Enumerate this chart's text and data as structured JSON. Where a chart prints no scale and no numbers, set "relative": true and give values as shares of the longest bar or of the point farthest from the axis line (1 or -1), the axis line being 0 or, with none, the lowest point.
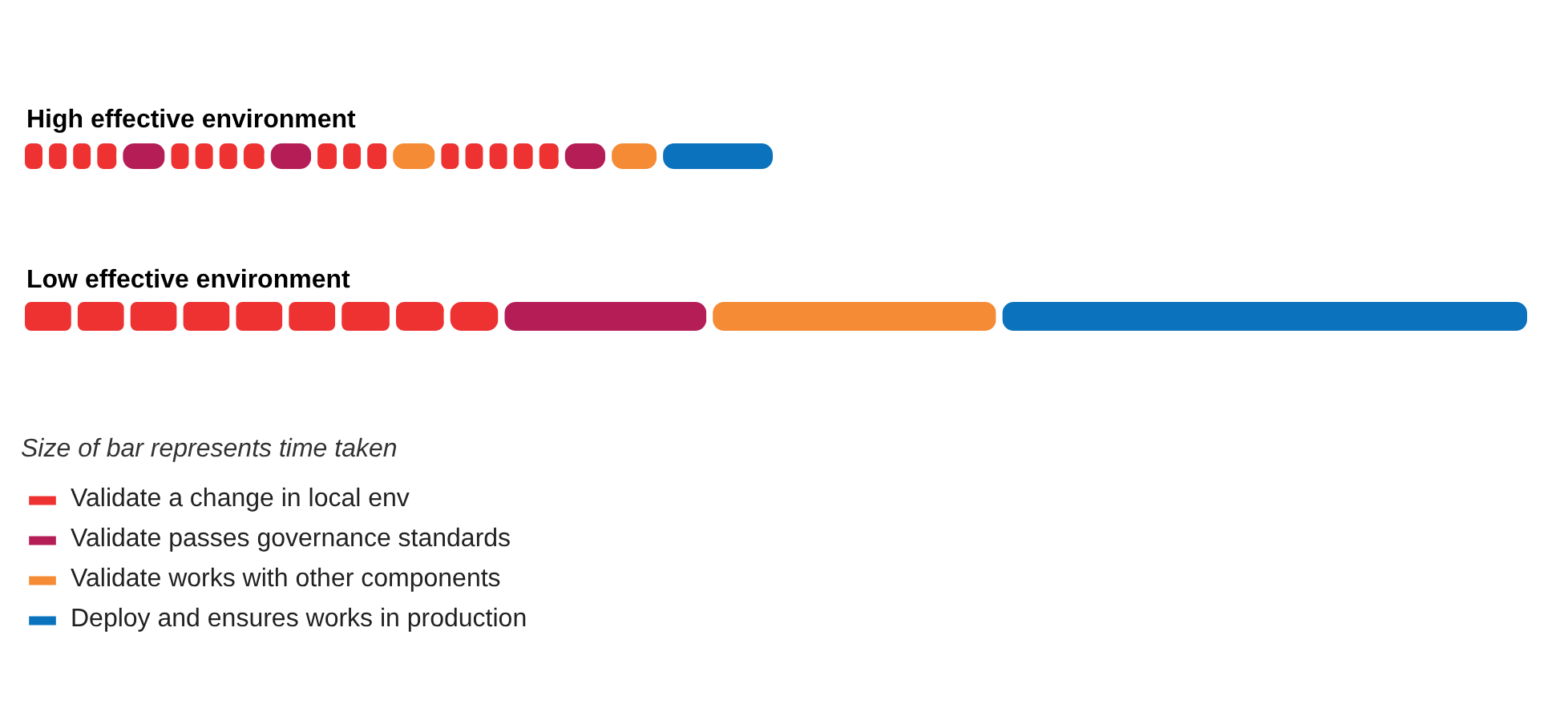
{
  "chart_data": {
    "type": "bar",
    "orientation": "horizontal",
    "stacked": true,
    "relative": true,
    "legend_title": "Size of bar represents time taken",
    "legend": "bottom left",
    "categories": [
      "High effective environment",
      "Low effective environment"
    ],
    "series": [
      {
        "name": "Validate a change in local env",
        "color": "#ee3131",
        "values": [
          0.016,
          0.035
        ]
      },
      {
        "color": "#ee3131",
        "values": [
          0.016,
          0.035
        ]
      },
      {
        "color": "#ee3131",
        "values": [
          0.016,
          0.035
        ]
      },
      {
        "color": "#ee3131",
        "values": [
          0.017,
          0.035
        ]
      },
      {
        "color": "#b51d57",
        "values": [
          0.032,
          null
        ]
      },
      {
        "color": "#ee3131",
        "values": [
          0.016,
          0.035
        ]
      },
      {
        "color": "#ee3131",
        "values": [
          0.016,
          0.035
        ]
      },
      {
        "color": "#ee3131",
        "values": [
          0.016,
          0.036
        ]
      },
      {
        "color": "#ee3131",
        "values": [
          0.018,
          0.036
        ]
      },
      {
        "color": "#ee3131",
        "values": [
          null,
          0.036
        ]
      },
      {
        "name": "Validate passes governance standards",
        "color": "#b51d57",
        "values": [
          0.031,
          0.138
        ]
      },
      {
        "color": "#ee3131",
        "values": [
          0.017,
          null
        ]
      },
      {
        "color": "#ee3131",
        "values": [
          0.016,
          null
        ]
      },
      {
        "color": "#ee3131",
        "values": [
          0.017,
          null
        ]
      },
      {
        "name": "Validate works with other components",
        "color": "#f58b35",
        "values": [
          0.032,
          0.192
        ]
      },
      {
        "color": "#ee3131",
        "values": [
          0.016,
          null
        ]
      },
      {
        "color": "#ee3131",
        "values": [
          0.016,
          null
        ]
      },
      {
        "color": "#ee3131",
        "values": [
          0.016,
          null
        ]
      },
      {
        "color": "#ee3131",
        "values": [
          0.017,
          null
        ]
      },
      {
        "color": "#ee3131",
        "values": [
          0.017,
          null
        ]
      },
      {
        "color": "#b51d57",
        "values": [
          0.031,
          null
        ]
      },
      {
        "color": "#f58b35",
        "values": [
          0.034,
          null
        ]
      },
      {
        "name": "Deploy and ensures works in production",
        "color": "#0b72bd",
        "values": [
          0.077,
          0.352
        ]
      }
    ]
  }
}
